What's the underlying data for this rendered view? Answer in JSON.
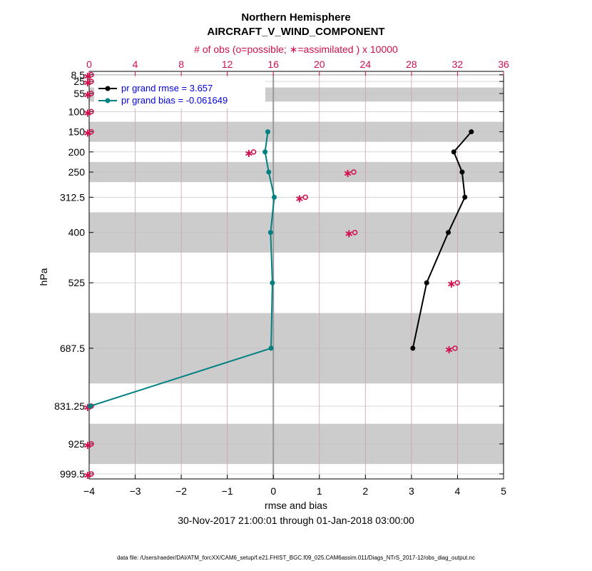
{
  "chart_data": {
    "type": "line",
    "title": "Northern Hemisphere",
    "subtitle": "AIRCRAFT_V_WIND_COMPONENT",
    "top_axis_label": "# of obs (o=possible; ∗=assimilated ) x 10000",
    "xlabel": "rmse and bias",
    "ylabel": "hPa",
    "date_range": "30-Nov-2017 21:00:01 through 01-Jan-2018 03:00:00",
    "footnote": "data file: /Users/raeder/DAI/ATM_forcXX/CAM6_setup/f.e21.FHIST_BGC.f09_025.CAM6assim.011/Diags_NTrS_2017-12/obs_diag_output.nc",
    "xlim": [
      -4,
      5
    ],
    "x_ticks": [
      -4,
      -3,
      -2,
      -1,
      0,
      1,
      2,
      3,
      4,
      5
    ],
    "top_xlim": [
      0,
      36
    ],
    "top_ticks": [
      0,
      4,
      8,
      12,
      16,
      20,
      24,
      28,
      32,
      36
    ],
    "levels": [
      8.5,
      25,
      55,
      100,
      150,
      200,
      250,
      312.5,
      400,
      525,
      687.5,
      831.25,
      925,
      999.5
    ],
    "level_labels": [
      "8.5",
      "25",
      "55",
      "100",
      "150",
      "200",
      "250",
      "312.5",
      "400",
      "525",
      "687.5",
      "831.25",
      "925",
      "999.5"
    ],
    "series": [
      {
        "name": "pr grand rmse = 3.657",
        "color": "#000000",
        "levels": [
          150,
          200,
          250,
          312.5,
          400,
          525,
          687.5
        ],
        "values": [
          4.3,
          3.92,
          4.1,
          4.16,
          3.8,
          3.33,
          3.03
        ]
      },
      {
        "name": "pr grand bias = -0.061649",
        "color": "#008080",
        "levels": [
          150,
          200,
          250,
          312.5,
          400,
          525,
          687.5,
          831.25
        ],
        "values": [
          -0.12,
          -0.18,
          -0.1,
          0.02,
          -0.06,
          -0.02,
          -0.05,
          -3.98
        ]
      }
    ],
    "obs_count": {
      "color": "#d0104c",
      "levels": [
        8.5,
        25,
        55,
        100,
        150,
        200,
        250,
        312.5,
        400,
        525,
        687.5,
        831.25,
        925,
        999.5
      ],
      "possible": [
        0,
        0,
        0,
        0,
        0,
        14.1,
        22.8,
        18.6,
        22.9,
        31.8,
        31.6,
        0,
        0,
        0
      ],
      "assimilated": [
        0,
        0,
        0,
        0,
        0,
        14.0,
        22.6,
        18.4,
        22.7,
        31.6,
        31.4,
        0,
        0,
        0
      ]
    },
    "shaded_bands": [
      [
        7,
        10
      ],
      [
        40,
        75
      ],
      [
        125,
        175
      ],
      [
        225,
        275
      ],
      [
        350,
        450
      ],
      [
        600,
        775
      ],
      [
        875,
        975
      ]
    ]
  }
}
